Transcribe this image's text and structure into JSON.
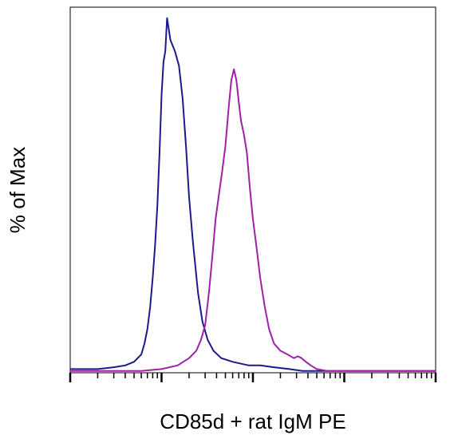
{
  "chart_data": {
    "type": "line",
    "title": "",
    "xlabel": "CD85d + rat IgM PE",
    "ylabel": "% of Max",
    "x_scale": "log",
    "xlim": [
      10,
      100000
    ],
    "ylim": [
      0,
      100
    ],
    "grid": false,
    "legend": "none",
    "major_ticks": [
      10,
      100,
      1000,
      10000,
      100000
    ],
    "tick_labels_shown": false,
    "series": [
      {
        "color": "#1a1a8c",
        "points": [
          [
            10,
            1
          ],
          [
            20,
            1
          ],
          [
            30,
            1.5
          ],
          [
            40,
            2
          ],
          [
            50,
            3
          ],
          [
            60,
            5
          ],
          [
            65,
            8
          ],
          [
            70,
            12
          ],
          [
            75,
            18
          ],
          [
            80,
            26
          ],
          [
            85,
            35
          ],
          [
            90,
            46
          ],
          [
            95,
            60
          ],
          [
            100,
            76
          ],
          [
            105,
            85
          ],
          [
            110,
            88
          ],
          [
            115,
            97
          ],
          [
            125,
            91
          ],
          [
            140,
            88
          ],
          [
            155,
            84
          ],
          [
            170,
            75
          ],
          [
            185,
            62
          ],
          [
            200,
            48
          ],
          [
            220,
            36
          ],
          [
            250,
            22
          ],
          [
            280,
            14
          ],
          [
            320,
            9
          ],
          [
            370,
            6
          ],
          [
            450,
            4
          ],
          [
            600,
            3
          ],
          [
            900,
            2
          ],
          [
            1200,
            2
          ],
          [
            1700,
            1.5
          ],
          [
            2500,
            1
          ],
          [
            3500,
            0.5
          ],
          [
            5000,
            0.5
          ],
          [
            100000,
            0.5
          ]
        ]
      },
      {
        "color": "#a020a8",
        "points": [
          [
            10,
            0.5
          ],
          [
            60,
            0.5
          ],
          [
            100,
            1
          ],
          [
            150,
            2
          ],
          [
            200,
            4
          ],
          [
            240,
            6
          ],
          [
            270,
            9
          ],
          [
            300,
            13
          ],
          [
            330,
            22
          ],
          [
            360,
            32
          ],
          [
            390,
            42
          ],
          [
            420,
            48
          ],
          [
            460,
            55
          ],
          [
            500,
            62
          ],
          [
            540,
            72
          ],
          [
            580,
            80
          ],
          [
            620,
            83
          ],
          [
            660,
            80
          ],
          [
            700,
            74
          ],
          [
            740,
            69
          ],
          [
            800,
            65
          ],
          [
            860,
            60
          ],
          [
            930,
            50
          ],
          [
            1000,
            42
          ],
          [
            1100,
            34
          ],
          [
            1200,
            26
          ],
          [
            1350,
            18
          ],
          [
            1500,
            12
          ],
          [
            1700,
            8
          ],
          [
            2000,
            6
          ],
          [
            2400,
            5
          ],
          [
            2800,
            4
          ],
          [
            3100,
            4.5
          ],
          [
            3400,
            4
          ],
          [
            3800,
            3
          ],
          [
            4300,
            2
          ],
          [
            5000,
            1
          ],
          [
            6500,
            0.5
          ],
          [
            100000,
            0.5
          ]
        ]
      }
    ]
  }
}
